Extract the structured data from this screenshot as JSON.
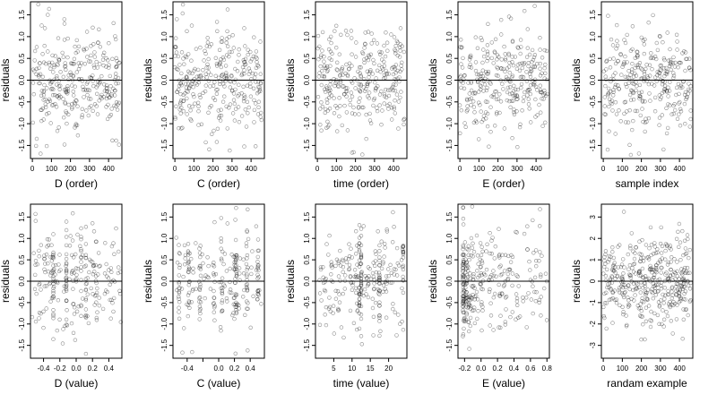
{
  "chart_data": [
    {
      "type": "scatter",
      "xlabel": "D (order)",
      "ylabel": "residuals",
      "xlim": [
        -10,
        470
      ],
      "ylim": [
        -1.8,
        1.8
      ],
      "xticks": [
        0,
        100,
        200,
        300,
        400
      ],
      "yticks": [
        -1.5,
        -1,
        -0.5,
        0,
        0.5,
        1,
        1.5
      ],
      "ytick_labels": [
        "-1.5",
        "-1.0",
        "-0.5",
        "0.0",
        "0.5",
        "1.0",
        "1.5"
      ],
      "hline": 0,
      "points": {
        "gen": "order",
        "n": 300,
        "seed": 11,
        "sd": 0.6
      }
    },
    {
      "type": "scatter",
      "xlabel": "C (order)",
      "ylabel": "residuals",
      "xlim": [
        -10,
        470
      ],
      "ylim": [
        -1.8,
        1.8
      ],
      "xticks": [
        0,
        100,
        200,
        300,
        400
      ],
      "yticks": [
        -1.5,
        -1,
        -0.5,
        0,
        0.5,
        1,
        1.5
      ],
      "ytick_labels": [
        "-1.5",
        "-1.0",
        "-0.5",
        "0.0",
        "0.5",
        "1.0",
        "1.5"
      ],
      "hline": 0,
      "points": {
        "gen": "order",
        "n": 300,
        "seed": 22,
        "sd": 0.6
      }
    },
    {
      "type": "scatter",
      "xlabel": "time (order)",
      "ylabel": "residuals",
      "xlim": [
        -10,
        470
      ],
      "ylim": [
        -1.8,
        1.8
      ],
      "xticks": [
        0,
        100,
        200,
        300,
        400
      ],
      "yticks": [
        -1.5,
        -1,
        -0.5,
        0,
        0.5,
        1,
        1.5
      ],
      "ytick_labels": [
        "-1.5",
        "-1.0",
        "-0.5",
        "0.0",
        "0.5",
        "1.0",
        "1.5"
      ],
      "hline": 0,
      "points": {
        "gen": "order",
        "n": 300,
        "seed": 33,
        "sd": 0.6
      }
    },
    {
      "type": "scatter",
      "xlabel": "E (order)",
      "ylabel": "residuals",
      "xlim": [
        -10,
        470
      ],
      "ylim": [
        -1.8,
        1.8
      ],
      "xticks": [
        0,
        100,
        200,
        300,
        400
      ],
      "yticks": [
        -1.5,
        -1,
        -0.5,
        0,
        0.5,
        1,
        1.5
      ],
      "ytick_labels": [
        "-1.5",
        "-1.0",
        "-0.5",
        "0.0",
        "0.5",
        "1.0",
        "1.5"
      ],
      "hline": 0,
      "points": {
        "gen": "order",
        "n": 300,
        "seed": 44,
        "sd": 0.6
      }
    },
    {
      "type": "scatter",
      "xlabel": "sample index",
      "ylabel": "residuals",
      "xlim": [
        -10,
        470
      ],
      "ylim": [
        -1.8,
        1.8
      ],
      "xticks": [
        0,
        100,
        200,
        300,
        400
      ],
      "yticks": [
        -1.5,
        -1,
        -0.5,
        0,
        0.5,
        1,
        1.5
      ],
      "ytick_labels": [
        "-1.5",
        "-1.0",
        "-0.5",
        "0.0",
        "0.5",
        "1.0",
        "1.5"
      ],
      "hline": 0,
      "points": {
        "gen": "order",
        "n": 300,
        "seed": 55,
        "sd": 0.6
      }
    },
    {
      "type": "scatter",
      "xlabel": "D (value)",
      "ylabel": "residuals",
      "xlim": [
        -0.56,
        0.56
      ],
      "ylim": [
        -1.8,
        1.8
      ],
      "xticks": [
        -0.4,
        -0.2,
        0,
        0.2,
        0.4
      ],
      "xtick_labels": [
        "-0.4",
        "-0.2",
        "0.0",
        "0.2",
        "0.4"
      ],
      "yticks": [
        -1.5,
        -1,
        -0.5,
        0,
        0.5,
        1,
        1.5
      ],
      "ytick_labels": [
        "-1.5",
        "-1.0",
        "-0.5",
        "0.0",
        "0.5",
        "1.0",
        "1.5"
      ],
      "hline": 0,
      "points": {
        "gen": "uniform",
        "n": 260,
        "seed": 66,
        "sd": 0.6,
        "min": -0.55,
        "max": 0.55,
        "cols": [
          -0.28,
          -0.12,
          0.06,
          0.12
        ]
      }
    },
    {
      "type": "scatter",
      "xlabel": "C (value)",
      "ylabel": "residuals",
      "xlim": [
        -0.58,
        0.58
      ],
      "ylim": [
        -1.8,
        1.8
      ],
      "xticks": [
        -0.4,
        -0.2,
        0,
        0.2,
        0.4
      ],
      "xtick_labels": [
        "-0.4",
        "",
        "0.0",
        "0.2",
        "0.4"
      ],
      "yticks": [
        -1.5,
        -1,
        -0.5,
        0,
        0.5,
        1,
        1.5
      ],
      "ytick_labels": [
        "-1.5",
        "-1.0",
        "-0.5",
        "0.0",
        "0.5",
        "1.0",
        "1.5"
      ],
      "hline": 0,
      "points": {
        "gen": "columns",
        "n": 260,
        "seed": 77,
        "sd": 0.6,
        "cols": [
          -0.5,
          -0.38,
          -0.24,
          -0.06,
          0.04,
          0.2,
          0.22,
          0.36,
          0.5
        ]
      }
    },
    {
      "type": "scatter",
      "xlabel": "time (value)",
      "ylabel": "residuals",
      "xlim": [
        0,
        25
      ],
      "ylim": [
        -1.8,
        1.8
      ],
      "xticks": [
        5,
        10,
        15,
        20
      ],
      "yticks": [
        -1.5,
        -1,
        -0.5,
        0,
        0.5,
        1,
        1.5
      ],
      "ytick_labels": [
        "-1.5",
        "-1.0",
        "-0.5",
        "0.0",
        "0.5",
        "1.0",
        "1.5"
      ],
      "hline": 0,
      "points": {
        "gen": "uniform",
        "n": 280,
        "seed": 88,
        "sd": 0.6,
        "min": 1,
        "max": 24,
        "cols": [
          12,
          12.5,
          17.5,
          24
        ]
      }
    },
    {
      "type": "scatter",
      "xlabel": "E (value)",
      "ylabel": "residuals",
      "xlim": [
        -0.28,
        0.83
      ],
      "ylim": [
        -1.8,
        1.8
      ],
      "xticks": [
        -0.2,
        0,
        0.2,
        0.4,
        0.6,
        0.8
      ],
      "xtick_labels": [
        "-0.2",
        "0.0",
        "0.2",
        "0.4",
        "0.6",
        "0.8"
      ],
      "yticks": [
        -1.5,
        -1,
        -0.5,
        0,
        0.5,
        1,
        1.5
      ],
      "ytick_labels": [
        "-1.5",
        "-1.0",
        "-0.5",
        "0.0",
        "0.5",
        "1.0",
        "1.5"
      ],
      "hline": 0,
      "points": {
        "gen": "skew",
        "n": 300,
        "seed": 99,
        "sd": 0.6,
        "min": -0.22,
        "max": 0.8
      }
    },
    {
      "type": "scatter",
      "xlabel": "randam example",
      "ylabel": "residuals",
      "xlim": [
        -10,
        470
      ],
      "ylim": [
        -3.6,
        3.6
      ],
      "xticks": [
        0,
        100,
        200,
        300,
        400
      ],
      "yticks": [
        -3,
        -2,
        -1,
        0,
        1,
        2,
        3
      ],
      "ytick_labels": [
        "-3",
        "-2",
        "-1",
        "0",
        "1",
        "2",
        "3"
      ],
      "hline": 0,
      "points": {
        "gen": "order",
        "n": 400,
        "seed": 123,
        "sd": 1.0
      }
    }
  ]
}
